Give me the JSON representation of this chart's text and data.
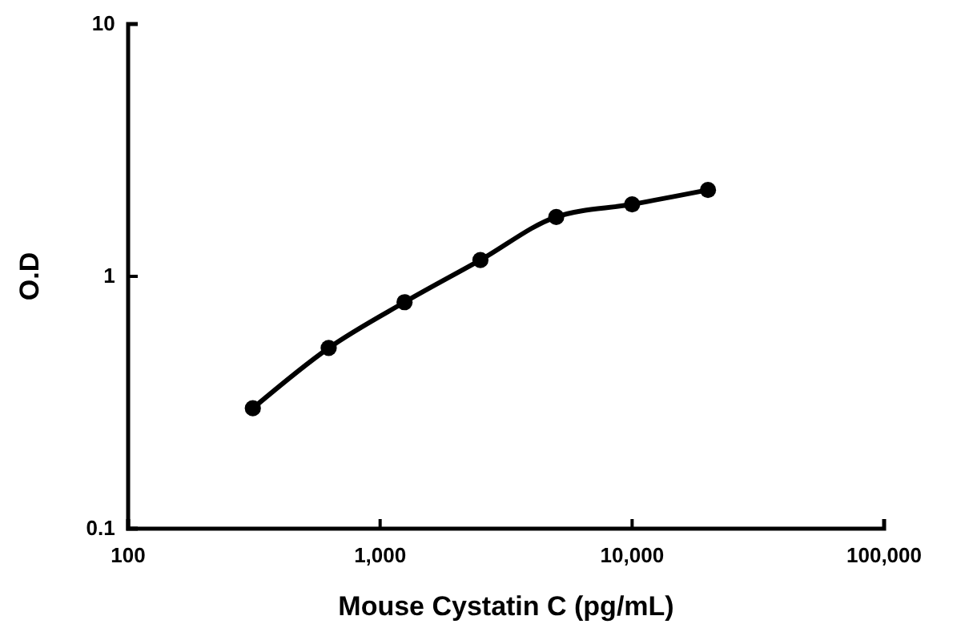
{
  "chart_data": {
    "type": "line",
    "xlabel": "Mouse Cystatin C (pg/mL)",
    "ylabel": "O.D",
    "log": "xy",
    "grid": false,
    "marker": "circle",
    "line_style": "solid",
    "xlim": [
      100,
      100000
    ],
    "xticks": [
      100,
      {
        "value": 1000,
        "label": "1,000"
      },
      {
        "value": 10000,
        "label": "10,000"
      },
      {
        "value": 100000,
        "label": "100,000"
      }
    ],
    "ylim": [
      0.1,
      10
    ],
    "yticks": [
      0.1,
      1,
      10
    ],
    "x": [
      312.5,
      625,
      1250,
      2500,
      5000,
      10000,
      20000
    ],
    "series": [
      {
        "color": "#000000",
        "values": [
          0.3,
          0.52,
          0.79,
          1.16,
          1.72,
          1.93,
          2.2
        ]
      }
    ]
  }
}
